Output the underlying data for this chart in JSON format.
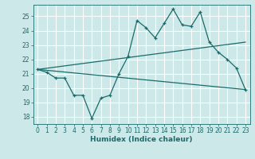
{
  "xlabel": "Humidex (Indice chaleur)",
  "bg_color": "#cde8e8",
  "grid_color": "#ffffff",
  "line_color": "#1a6b6b",
  "xlim": [
    -0.5,
    23.5
  ],
  "ylim": [
    17.5,
    25.8
  ],
  "yticks": [
    18,
    19,
    20,
    21,
    22,
    23,
    24,
    25
  ],
  "xticks": [
    0,
    1,
    2,
    3,
    4,
    5,
    6,
    7,
    8,
    9,
    10,
    11,
    12,
    13,
    14,
    15,
    16,
    17,
    18,
    19,
    20,
    21,
    22,
    23
  ],
  "main_series": [
    21.3,
    21.1,
    20.7,
    20.7,
    19.5,
    19.5,
    17.9,
    19.3,
    19.5,
    21.0,
    22.2,
    24.7,
    24.2,
    23.5,
    24.5,
    25.5,
    24.4,
    24.3,
    25.3,
    23.2,
    22.5,
    22.0,
    21.4,
    19.9
  ],
  "upper_line_start": 21.3,
  "upper_line_end": 23.2,
  "lower_line_start": 21.3,
  "lower_line_end": 19.9,
  "tick_fontsize": 5.5,
  "xlabel_fontsize": 6.5
}
